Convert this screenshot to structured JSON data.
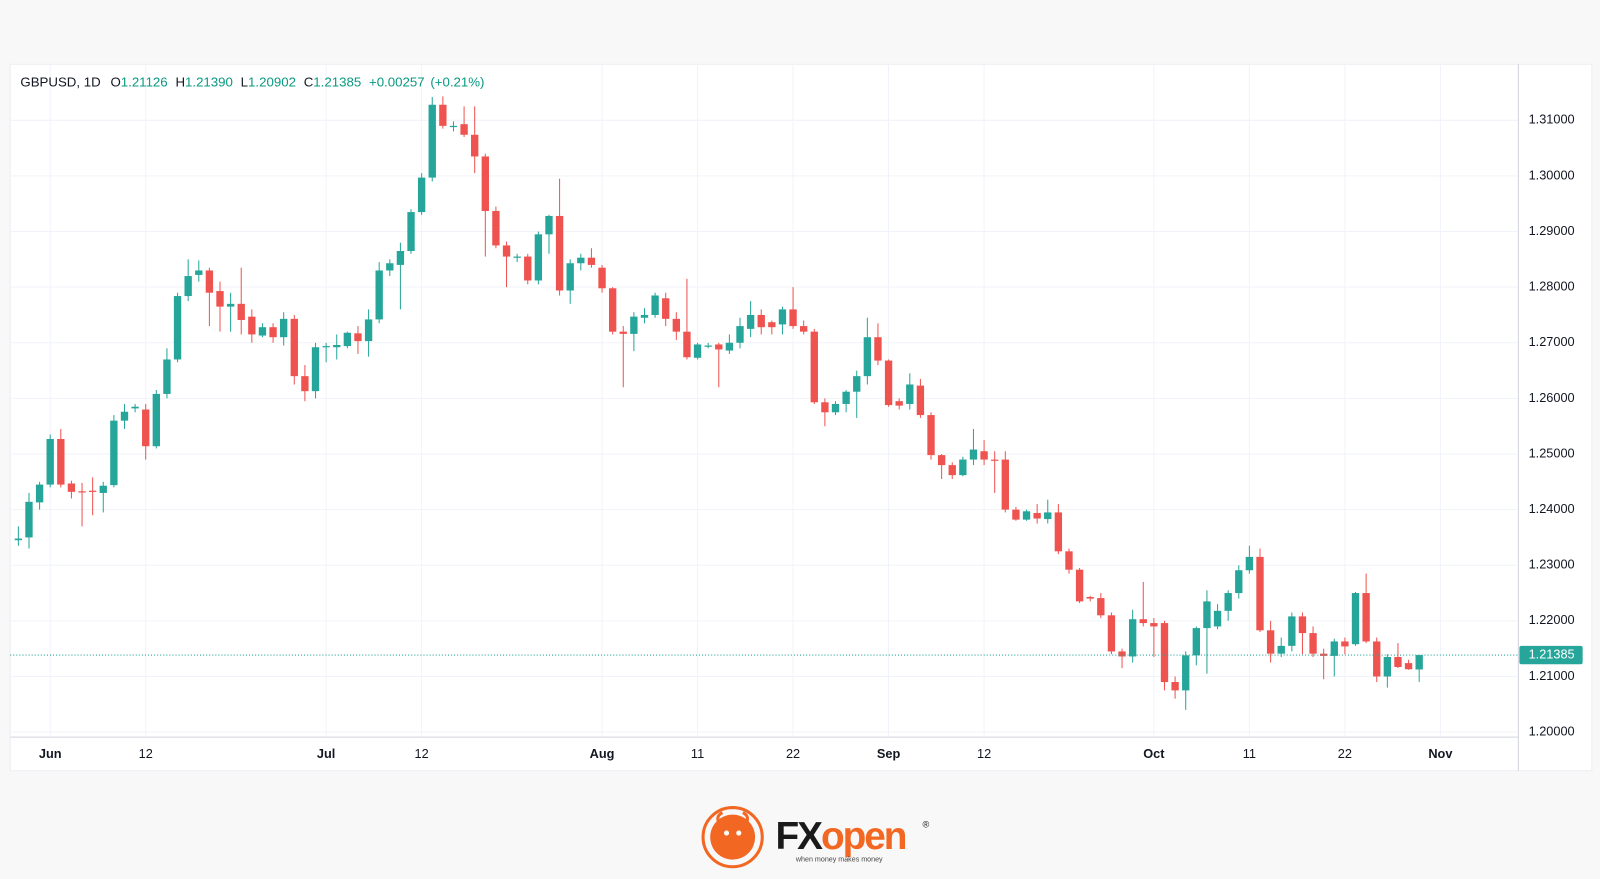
{
  "chart_data": {
    "type": "candlestick",
    "header": {
      "symbol": "GBPUSD, 1D",
      "open_label": "O",
      "open": "1.21126",
      "high_label": "H",
      "high": "1.21390",
      "low_label": "L",
      "low": "1.20902",
      "close_label": "C",
      "close": "1.21385",
      "change": "+0.00257",
      "change_pct": "(+0.21%)"
    },
    "categories": [
      null,
      null,
      null,
      "Jun",
      null,
      null,
      null,
      null,
      null,
      null,
      null,
      null,
      "12",
      null,
      null,
      null,
      null,
      null,
      null,
      null,
      null,
      null,
      null,
      null,
      null,
      null,
      null,
      null,
      null,
      "Jul",
      null,
      null,
      null,
      null,
      null,
      null,
      null,
      null,
      "12",
      null,
      null,
      null,
      null,
      null,
      null,
      null,
      null,
      null,
      null,
      null,
      null,
      null,
      null,
      null,
      null,
      "Aug",
      null,
      null,
      null,
      null,
      null,
      null,
      null,
      null,
      "11",
      null,
      null,
      null,
      null,
      null,
      null,
      null,
      null,
      "22",
      null,
      null,
      null,
      null,
      null,
      null,
      null,
      null,
      "Sep",
      null,
      null,
      null,
      null,
      null,
      null,
      null,
      null,
      "12",
      null,
      null,
      null,
      null,
      null,
      null,
      null,
      null,
      null,
      null,
      null,
      null,
      null,
      null,
      null,
      "Oct",
      null,
      null,
      null,
      null,
      null,
      null,
      null,
      null,
      "11",
      null,
      null,
      null,
      null,
      null,
      null,
      null,
      null,
      "22",
      null,
      null,
      null,
      null,
      null,
      null,
      null,
      null,
      "Nov"
    ],
    "open": [
      1.2345,
      1.235,
      1.2413,
      1.2445,
      1.2527,
      1.2447,
      1.2433,
      1.2434,
      1.243,
      1.2444,
      1.256,
      1.2582,
      1.258,
      1.2514,
      1.2608,
      1.267,
      1.2784,
      1.2822,
      1.283,
      1.2793,
      1.2765,
      1.277,
      1.2747,
      1.2713,
      1.2728,
      1.271,
      1.2743,
      1.264,
      1.2613,
      1.2693,
      1.2692,
      1.2694,
      1.2717,
      1.2703,
      1.2742,
      1.283,
      1.284,
      1.2865,
      1.2935,
      1.2997,
      1.3128,
      1.3088,
      1.3093,
      1.3074,
      1.3035,
      1.2937,
      1.2875,
      1.2853,
      1.2855,
      1.2812,
      1.2895,
      1.2928,
      1.2794,
      1.2843,
      1.2853,
      1.2835,
      1.2798,
      1.272,
      1.2716,
      1.2745,
      1.275,
      1.278,
      1.2743,
      1.272,
      1.2673,
      1.2693,
      1.2697,
      1.2686,
      1.27,
      1.2725,
      1.275,
      1.2737,
      1.2733,
      1.276,
      1.273,
      1.272,
      1.2593,
      1.2575,
      1.259,
      1.2612,
      1.264,
      1.271,
      1.2668,
      1.2595,
      1.259,
      1.2623,
      1.257,
      1.2498,
      1.248,
      1.2462,
      1.249,
      1.2505,
      1.249,
      1.249,
      1.24,
      1.2382,
      1.2394,
      1.2383,
      1.2395,
      1.2325,
      1.2292,
      1.2243,
      1.2241,
      1.221,
      1.2145,
      1.2136,
      1.2203,
      1.2196,
      1.2196,
      1.209,
      1.2075,
      1.2138,
      1.2187,
      1.219,
      1.2218,
      1.225,
      1.2291,
      1.2315,
      1.2183,
      1.2141,
      1.2155,
      1.2208,
      1.2178,
      1.2141,
      1.2137,
      1.2163,
      1.2158,
      1.225,
      1.2163,
      1.21,
      1.2135,
      1.2124,
      1.21126,
      null,
      null
    ],
    "high": [
      1.237,
      1.243,
      1.245,
      1.2535,
      1.2545,
      1.2452,
      1.2448,
      1.2458,
      1.245,
      1.257,
      1.259,
      1.259,
      1.259,
      1.2615,
      1.269,
      1.279,
      1.285,
      1.2848,
      1.2835,
      1.281,
      1.279,
      1.2835,
      1.276,
      1.2735,
      1.2735,
      1.2755,
      1.275,
      1.266,
      1.27,
      1.27,
      1.2715,
      1.272,
      1.273,
      1.276,
      1.2845,
      1.285,
      1.288,
      1.294,
      1.3005,
      1.3142,
      1.3143,
      1.3098,
      1.3125,
      1.3125,
      1.304,
      1.2945,
      1.2882,
      1.286,
      1.286,
      1.29,
      1.293,
      1.2995,
      1.285,
      1.286,
      1.287,
      1.284,
      1.28,
      1.273,
      1.2755,
      1.2762,
      1.279,
      1.279,
      1.2755,
      1.2815,
      1.27,
      1.27,
      1.27,
      1.2715,
      1.2745,
      1.2775,
      1.276,
      1.274,
      1.2765,
      1.28,
      1.274,
      1.2725,
      1.26,
      1.2595,
      1.2615,
      1.265,
      1.2745,
      1.2735,
      1.267,
      1.26,
      1.2645,
      1.2635,
      1.2575,
      1.25,
      1.2485,
      1.2495,
      1.2545,
      1.2525,
      1.2505,
      1.2505,
      1.2405,
      1.24,
      1.241,
      1.2418,
      1.241,
      1.233,
      1.2295,
      1.2245,
      1.225,
      1.2215,
      1.215,
      1.222,
      1.227,
      1.2205,
      1.22,
      1.21,
      1.2145,
      1.219,
      1.2255,
      1.223,
      1.2255,
      1.23,
      1.2335,
      1.233,
      1.22,
      1.217,
      1.2215,
      1.2215,
      1.219,
      1.215,
      1.2168,
      1.217,
      1.2252,
      1.2285,
      1.217,
      1.214,
      1.216,
      1.213,
      1.2139,
      null,
      null
    ],
    "low": [
      1.2335,
      1.233,
      1.24,
      1.244,
      1.244,
      1.242,
      1.237,
      1.239,
      1.2395,
      1.244,
      1.2545,
      1.2575,
      1.249,
      1.251,
      1.26,
      1.2665,
      1.2775,
      1.281,
      1.273,
      1.272,
      1.272,
      1.2715,
      1.27,
      1.271,
      1.27,
      1.2695,
      1.2625,
      1.2595,
      1.26,
      1.2665,
      1.267,
      1.269,
      1.268,
      1.2675,
      1.2735,
      1.282,
      1.276,
      1.286,
      1.293,
      1.299,
      1.3085,
      1.308,
      1.307,
      1.3005,
      1.2855,
      1.287,
      1.28,
      1.2845,
      1.2805,
      1.2805,
      1.286,
      1.2785,
      1.277,
      1.283,
      1.2835,
      1.279,
      1.2715,
      1.262,
      1.2685,
      1.2735,
      1.2745,
      1.273,
      1.2705,
      1.267,
      1.267,
      1.269,
      1.262,
      1.268,
      1.269,
      1.271,
      1.2715,
      1.2715,
      1.2715,
      1.2725,
      1.2715,
      1.259,
      1.255,
      1.257,
      1.2575,
      1.2565,
      1.2625,
      1.266,
      1.2585,
      1.258,
      1.258,
      1.2565,
      1.249,
      1.2455,
      1.2455,
      1.246,
      1.248,
      1.248,
      1.243,
      1.2395,
      1.238,
      1.238,
      1.2375,
      1.2375,
      1.232,
      1.2285,
      1.2232,
      1.2235,
      1.2205,
      1.214,
      1.2115,
      1.2125,
      1.219,
      1.2135,
      1.2075,
      1.206,
      1.204,
      1.212,
      1.2105,
      1.2185,
      1.22,
      1.224,
      1.2285,
      1.218,
      1.2125,
      1.2135,
      1.2145,
      1.214,
      1.2135,
      1.2095,
      1.21,
      1.214,
      1.2155,
      1.216,
      1.209,
      1.208,
      1.2115,
      1.2112,
      1.20902,
      null,
      null
    ],
    "close": [
      1.2348,
      1.2414,
      1.2445,
      1.2527,
      1.2445,
      1.2432,
      1.2432,
      1.2432,
      1.2443,
      1.256,
      1.2576,
      1.2585,
      1.2514,
      1.2608,
      1.267,
      1.2784,
      1.282,
      1.283,
      1.279,
      1.2765,
      1.277,
      1.2741,
      1.2715,
      1.2728,
      1.271,
      1.2743,
      1.264,
      1.2613,
      1.2692,
      1.2694,
      1.2696,
      1.2718,
      1.2703,
      1.2742,
      1.283,
      1.2843,
      1.2865,
      1.2935,
      1.2997,
      1.3128,
      1.309,
      1.309,
      1.3074,
      1.3035,
      1.2937,
      1.2875,
      1.2855,
      1.2855,
      1.2812,
      1.2895,
      1.2928,
      1.2794,
      1.2843,
      1.2853,
      1.284,
      1.2798,
      1.272,
      1.2716,
      1.2747,
      1.275,
      1.2785,
      1.2743,
      1.272,
      1.2674,
      1.2697,
      1.2695,
      1.2688,
      1.27,
      1.273,
      1.275,
      1.2728,
      1.2728,
      1.276,
      1.273,
      1.272,
      1.2593,
      1.2575,
      1.259,
      1.2612,
      1.264,
      1.271,
      1.2668,
      1.2588,
      1.2587,
      1.2625,
      1.257,
      1.2498,
      1.248,
      1.2462,
      1.249,
      1.2508,
      1.249,
      1.2488,
      1.24,
      1.2382,
      1.2397,
      1.2384,
      1.2395,
      1.2325,
      1.2292,
      1.2235,
      1.224,
      1.221,
      1.2145,
      1.2136,
      1.2203,
      1.2196,
      1.219,
      1.209,
      1.2075,
      1.2138,
      1.2187,
      1.2235,
      1.2218,
      1.225,
      1.2291,
      1.2315,
      1.2183,
      1.2141,
      1.2155,
      1.2208,
      1.2178,
      1.2141,
      1.2137,
      1.2163,
      1.2154,
      1.225,
      1.2163,
      1.21,
      1.2135,
      1.2117,
      1.2113,
      1.21385,
      null,
      null
    ],
    "up_color": "#26a69a",
    "down_color": "#ef5350",
    "ylim": [
      1.1991,
      1.3197
    ],
    "yticks": [
      {
        "value": 1.2,
        "label": "1.20000"
      },
      {
        "value": 1.21,
        "label": "1.21000"
      },
      {
        "value": 1.22,
        "label": "1.22000"
      },
      {
        "value": 1.23,
        "label": "1.23000"
      },
      {
        "value": 1.24,
        "label": "1.24000"
      },
      {
        "value": 1.25,
        "label": "1.25000"
      },
      {
        "value": 1.26,
        "label": "1.26000"
      },
      {
        "value": 1.27,
        "label": "1.27000"
      },
      {
        "value": 1.28,
        "label": "1.28000"
      },
      {
        "value": 1.29,
        "label": "1.29000"
      },
      {
        "value": 1.3,
        "label": "1.30000"
      },
      {
        "value": 1.31,
        "label": "1.31000"
      }
    ],
    "grid": true,
    "last_price": {
      "value": 1.21385,
      "label": "1.21385"
    }
  },
  "footer": {
    "logo_fx": "FX",
    "logo_open": "open",
    "tagline": "when money makes money",
    "registered": "®"
  }
}
